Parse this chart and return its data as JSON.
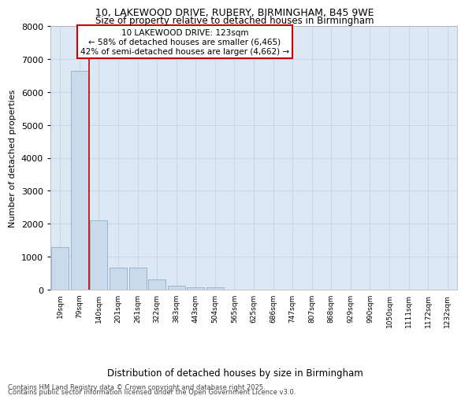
{
  "title_line1": "10, LAKEWOOD DRIVE, RUBERY, BIRMINGHAM, B45 9WE",
  "title_line2": "Size of property relative to detached houses in Birmingham",
  "xlabel": "Distribution of detached houses by size in Birmingham",
  "ylabel": "Number of detached properties",
  "categories": [
    "19sqm",
    "79sqm",
    "140sqm",
    "201sqm",
    "261sqm",
    "322sqm",
    "383sqm",
    "443sqm",
    "504sqm",
    "565sqm",
    "625sqm",
    "686sqm",
    "747sqm",
    "807sqm",
    "868sqm",
    "929sqm",
    "990sqm",
    "1050sqm",
    "1111sqm",
    "1172sqm",
    "1232sqm"
  ],
  "values": [
    1300,
    6650,
    2100,
    680,
    670,
    300,
    130,
    80,
    60,
    5,
    5,
    0,
    0,
    0,
    0,
    0,
    0,
    0,
    0,
    0,
    0
  ],
  "bar_color": "#c9daea",
  "bar_edge_color": "#8dafc8",
  "property_line_x": 1.5,
  "annotation_title": "10 LAKEWOOD DRIVE: 123sqm",
  "annotation_line1": "← 58% of detached houses are smaller (6,465)",
  "annotation_line2": "42% of semi-detached houses are larger (4,662) →",
  "annotation_box_facecolor": "#ffffff",
  "annotation_box_edgecolor": "#cc0000",
  "line_color": "#cc0000",
  "ylim": [
    0,
    8000
  ],
  "yticks": [
    0,
    1000,
    2000,
    3000,
    4000,
    5000,
    6000,
    7000,
    8000
  ],
  "footer_line1": "Contains HM Land Registry data © Crown copyright and database right 2025.",
  "footer_line2": "Contains public sector information licensed under the Open Government Licence v3.0.",
  "fig_facecolor": "#ffffff",
  "plot_facecolor": "#dce9f5",
  "grid_color": "#c8d8e8"
}
